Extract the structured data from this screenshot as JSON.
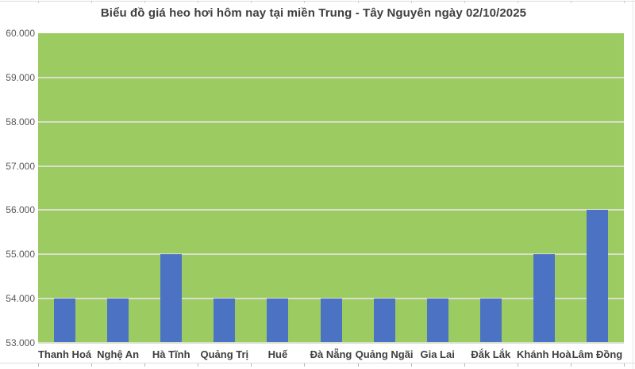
{
  "page": {
    "title": "Biểu đồ giá heo hơi hôm nay tại miền Trung - Tây Nguyên ngày 02/10/2025"
  },
  "chart_data": {
    "type": "bar",
    "title": "Biểu đồ giá heo hơi hôm nay tại miền Trung - Tây Nguyên ngày 02/10/2025",
    "xlabel": "",
    "ylabel": "",
    "categories": [
      "Thanh Hoá",
      "Nghệ An",
      "Hà Tĩnh",
      "Quảng Trị",
      "Huế",
      "Đà Nẵng",
      "Quảng Ngãi",
      "Gia Lai",
      "Đắk Lắk",
      "Khánh Hoà",
      "Lâm Đồng"
    ],
    "values": [
      54000,
      54000,
      55000,
      54000,
      54000,
      54000,
      54000,
      54000,
      54000,
      55000,
      56000
    ],
    "y_tick_labels": [
      "60.000",
      "59.000",
      "58.000",
      "57.000",
      "56.000",
      "55.000",
      "54.000",
      "53.000"
    ],
    "y_tick_values": [
      60000,
      59000,
      58000,
      57000,
      56000,
      55000,
      54000,
      53000
    ],
    "ylim": [
      53000,
      60000
    ],
    "y_step": 1000,
    "grid": "horizontal",
    "legend_position": "none",
    "colors": {
      "background": "#FFFFFF",
      "plot_background": "#9CCB62",
      "bar": "#4C73C3",
      "gridline": "#D8DFCC",
      "bottom_edge_line": "#D8DFCC",
      "title_text": "#3F3F3F",
      "y_axis_label": "#595959",
      "category_label": "#3F3F3F",
      "frame_line": "#DCDCDC",
      "tick_mark": "#A6A6A6"
    }
  }
}
